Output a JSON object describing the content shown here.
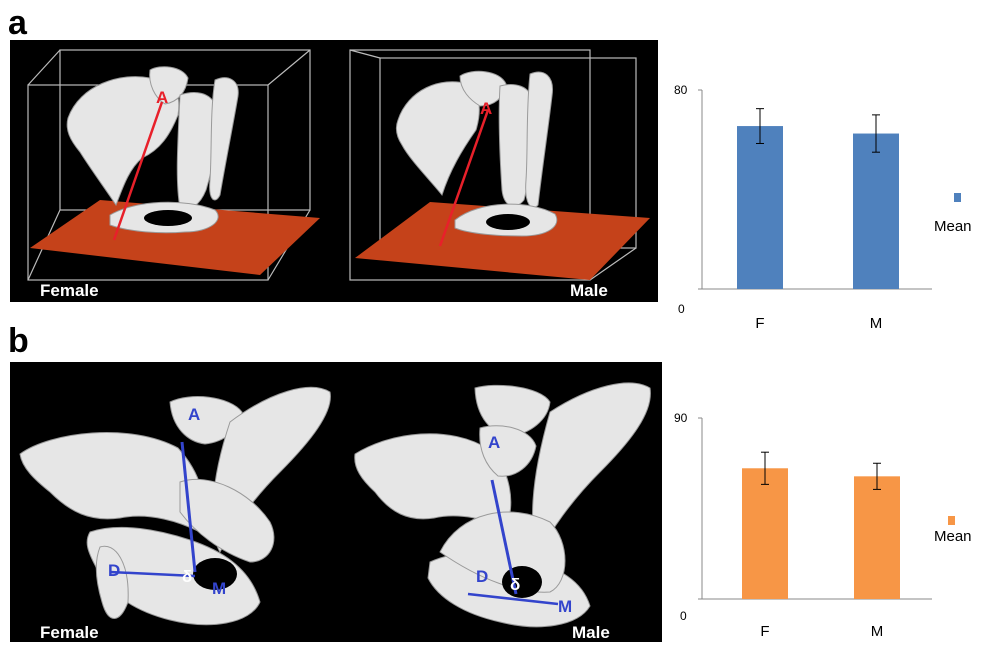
{
  "panel_a": {
    "letter": "a",
    "image": {
      "left_label": "Female",
      "right_label": "Male",
      "point_label": "A"
    }
  },
  "panel_b": {
    "letter": "b",
    "image": {
      "left_label": "Female",
      "right_label": "Male",
      "point_labels": [
        "A",
        "D",
        "δ",
        "M"
      ]
    }
  },
  "colors": {
    "bar_a": "#4f81bd",
    "bar_b": "#f79646",
    "line_a": "#e8202a",
    "line_b": "#3344cc",
    "floor": "#c5421a",
    "bone": "#e6e6e6"
  },
  "chart_data": [
    {
      "type": "bar",
      "categories": [
        "F",
        "M"
      ],
      "series": [
        {
          "name": "Mean",
          "values": [
            65.5,
            62.5
          ],
          "error": [
            7,
            7.5
          ]
        }
      ],
      "ylim": [
        0,
        80
      ],
      "ytick_labels": [
        "0",
        "80"
      ],
      "legend": "right",
      "grid": false,
      "title": "",
      "xlabel": "",
      "ylabel": ""
    },
    {
      "type": "bar",
      "categories": [
        "F",
        "M"
      ],
      "series": [
        {
          "name": "Mean",
          "values": [
            65,
            61
          ],
          "error": [
            8,
            6.5
          ]
        }
      ],
      "ylim": [
        0,
        90
      ],
      "ytick_labels": [
        "0",
        "90"
      ],
      "legend": "right",
      "grid": false,
      "title": "",
      "xlabel": "",
      "ylabel": ""
    }
  ]
}
